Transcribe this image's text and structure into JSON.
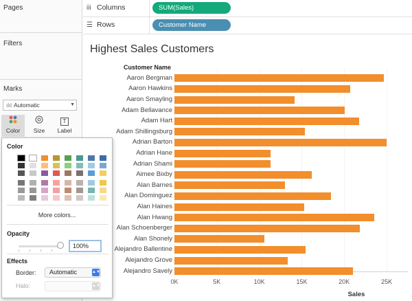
{
  "left_pane": {
    "pages_label": "Pages",
    "filters_label": "Filters",
    "marks_label": "Marks",
    "mark_type": "Automatic",
    "mark_buttons": {
      "color": "Color",
      "size": "Size",
      "label": "Label",
      "label_icon": "T"
    }
  },
  "shelves": {
    "columns": {
      "icon": "iii",
      "label": "Columns",
      "pill": "SUM(Sales)"
    },
    "rows": {
      "icon": "☰",
      "label": "Rows",
      "pill": "Customer Name"
    }
  },
  "color_popup": {
    "color_heading": "Color",
    "more_colors": "More colors...",
    "opacity_heading": "Opacity",
    "opacity_value": "100%",
    "effects_heading": "Effects",
    "border_label": "Border:",
    "border_value": "Automatic",
    "halo_label": "Halo:",
    "palette_columns": [
      [
        "#000000",
        "#333333",
        "#555555",
        "#777777",
        "#999999",
        "#bbbbbb"
      ],
      [
        "#ffffff",
        "#e0e0e0",
        "#c8c8c8",
        "#b0b0b0",
        "#989898",
        "#808080"
      ],
      [
        "#f28e2c",
        "#ffbe7d",
        "#8a5aa0",
        "#b07aa1",
        "#d4a6c8",
        "#e8c8dc"
      ],
      [
        "#b6992d",
        "#d7c25a",
        "#e15759",
        "#ff9d9a",
        "#f1a0a8",
        "#f7c6c9"
      ],
      [
        "#59a14f",
        "#8cd17d",
        "#9d7660",
        "#d7b5a6",
        "#c08a70",
        "#e0c0b0"
      ],
      [
        "#499894",
        "#86bcb6",
        "#79706e",
        "#bab0ac",
        "#a09894",
        "#d0c8c4"
      ],
      [
        "#4e79a7",
        "#a0cbe8",
        "#5b9bd5",
        "#9ecae1",
        "#76b7b2",
        "#bfe0dc"
      ],
      [
        "#3a6ea5",
        "#7aa6d6",
        "#f1ce63",
        "#edc948",
        "#f6d98c",
        "#fbe8b5"
      ]
    ]
  },
  "chart_data": {
    "type": "bar",
    "orientation": "horizontal",
    "title": "Highest Sales Customers",
    "row_header": "Customer Name",
    "xlabel": "Sales",
    "xlim": [
      0,
      27500
    ],
    "xticks": [
      0,
      5000,
      10000,
      15000,
      20000,
      25000
    ],
    "xtick_labels": [
      "0K",
      "5K",
      "10K",
      "15K",
      "20K",
      "25K"
    ],
    "bar_color": "#f28e2c",
    "categories": [
      "Aaron Bergman",
      "Aaron Hawkins",
      "Aaron Smayling",
      "Adam Bellavance",
      "Adam Hart",
      "Adam Shillingsburg",
      "Adrian Barton",
      "Adrian Hane",
      "Adrian Shami",
      "Aimee Bixby",
      "Alan Barnes",
      "Alan Dominguez",
      "Alan Haines",
      "Alan Hwang",
      "Alan Schoenberger",
      "Alan Shonely",
      "Alejandro Ballentine",
      "Alejandro Grove",
      "Alejandro Savely"
    ],
    "values": [
      24650,
      20700,
      14150,
      20050,
      21750,
      15400,
      25000,
      11350,
      11300,
      16150,
      13000,
      18450,
      15250,
      23550,
      21850,
      10600,
      15450,
      13350,
      21000
    ]
  }
}
